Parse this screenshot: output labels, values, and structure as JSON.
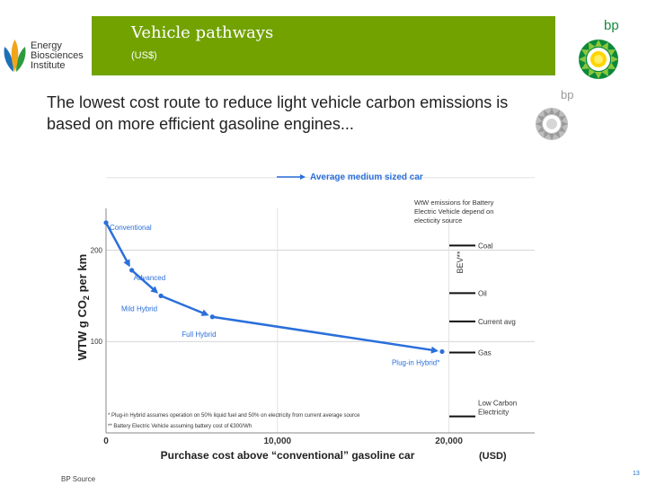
{
  "header": {
    "title": "Vehicle pathways",
    "subtitle": "(US$)",
    "band_color": "#72a200"
  },
  "logo": {
    "name": "Energy Biosciences Institute",
    "lines": [
      "Energy",
      "Biosciences",
      "Institute"
    ]
  },
  "brand": {
    "top_label": "bp",
    "gray_label": "bp"
  },
  "headline": "The lowest cost route to reduce light vehicle carbon emissions is based on more efficient gasoline engines...",
  "footer": {
    "source": "BP Source",
    "page": "13"
  },
  "chart_data": {
    "type": "line",
    "title": "Average medium sized car",
    "xlabel": "Purchase cost above “conventional” gasoline car",
    "xlabel_unit": "(USD)",
    "ylabel_parts": [
      "WTW g CO",
      "2",
      " per km"
    ],
    "xlim": [
      0,
      25000
    ],
    "ylim": [
      0,
      285
    ],
    "xticks": [
      0,
      10000,
      20000
    ],
    "xtick_labels": [
      "0",
      "10,000",
      "20,000"
    ],
    "yticks": [
      100,
      200
    ],
    "ytick_labels": [
      "100",
      "200"
    ],
    "series": [
      {
        "name": "Average medium sized car",
        "color": "#2a6fdb",
        "points": [
          {
            "label": "Conventional",
            "x": 0,
            "y": 230
          },
          {
            "label": "Advanced",
            "x": 1500,
            "y": 178
          },
          {
            "label": "Mild Hybrid",
            "x": 3200,
            "y": 150
          },
          {
            "label": "Full Hybrid",
            "x": 6200,
            "y": 127
          },
          {
            "label": "Plug-in Hybrid*",
            "x": 19600,
            "y": 89
          }
        ]
      }
    ],
    "bev": {
      "axis_label": "BEV**",
      "note": [
        "WtW emissions for Battery",
        "Electric Vehicle depend on",
        "electicity source"
      ],
      "sources": [
        {
          "label": "Coal",
          "y": 205
        },
        {
          "label": "Oil",
          "y": 153
        },
        {
          "label": "Current  avg",
          "y": 122
        },
        {
          "label": "Gas",
          "y": 88
        },
        {
          "label": "Low Carbon Electricity",
          "lines": [
            "Low Carbon",
            "Electricity"
          ],
          "y": 18
        }
      ]
    },
    "footnotes": [
      "* Plug-in Hybrid assumes operation on 50% liquid fuel and 50% on electricity from current average source",
      "** Battery Electric Vehicle assuming battery cost of €300/Wh"
    ],
    "grid": true
  }
}
